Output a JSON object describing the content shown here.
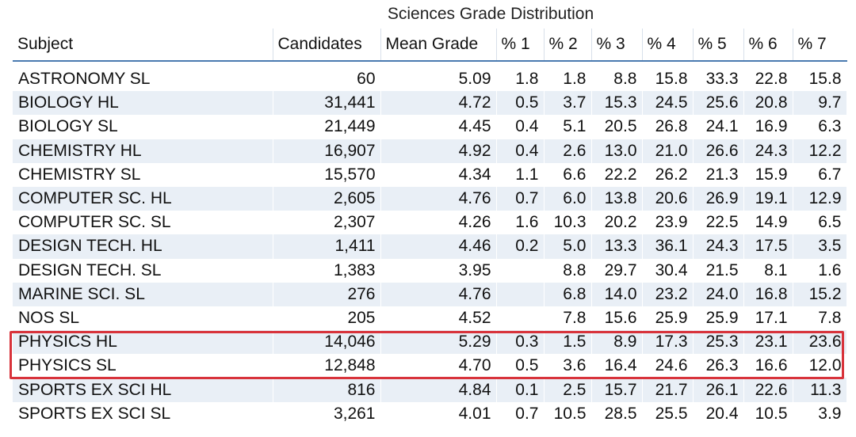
{
  "title": "Sciences Grade Distribution",
  "highlight_color": "#d8333b",
  "header_rule_color": "#4a7ab0",
  "stripe_color": "#e9eff6",
  "columns": [
    "Subject",
    "Candidates",
    "Mean Grade",
    "% 1",
    "% 2",
    "% 3",
    "% 4",
    "% 5",
    "% 6",
    "% 7"
  ],
  "rows": [
    [
      "ASTRONOMY SL",
      "60",
      "5.09",
      "1.8",
      "1.8",
      "8.8",
      "15.8",
      "33.3",
      "22.8",
      "15.8"
    ],
    [
      "BIOLOGY HL",
      "31,441",
      "4.72",
      "0.5",
      "3.7",
      "15.3",
      "24.5",
      "25.6",
      "20.8",
      "9.7"
    ],
    [
      "BIOLOGY SL",
      "21,449",
      "4.45",
      "0.4",
      "5.1",
      "20.5",
      "26.8",
      "24.1",
      "16.9",
      "6.3"
    ],
    [
      "CHEMISTRY HL",
      "16,907",
      "4.92",
      "0.4",
      "2.6",
      "13.0",
      "21.0",
      "26.6",
      "24.3",
      "12.2"
    ],
    [
      "CHEMISTRY SL",
      "15,570",
      "4.34",
      "1.1",
      "6.6",
      "22.2",
      "26.2",
      "21.3",
      "15.9",
      "6.7"
    ],
    [
      "COMPUTER SC. HL",
      "2,605",
      "4.76",
      "0.7",
      "6.0",
      "13.8",
      "20.6",
      "26.9",
      "19.1",
      "12.9"
    ],
    [
      "COMPUTER SC. SL",
      "2,307",
      "4.26",
      "1.6",
      "10.3",
      "20.2",
      "23.9",
      "22.5",
      "14.9",
      "6.5"
    ],
    [
      "DESIGN TECH. HL",
      "1,411",
      "4.46",
      "0.2",
      "5.0",
      "13.3",
      "36.1",
      "24.3",
      "17.5",
      "3.5"
    ],
    [
      "DESIGN TECH. SL",
      "1,383",
      "3.95",
      "",
      "8.8",
      "29.7",
      "30.4",
      "21.5",
      "8.1",
      "1.6"
    ],
    [
      "MARINE SCI. SL",
      "276",
      "4.76",
      "",
      "6.8",
      "14.0",
      "23.2",
      "24.0",
      "16.8",
      "15.2"
    ],
    [
      "NOS SL",
      "205",
      "4.52",
      "",
      "7.8",
      "15.6",
      "25.9",
      "25.9",
      "17.1",
      "7.8"
    ],
    [
      "PHYSICS HL",
      "14,046",
      "5.29",
      "0.3",
      "1.5",
      "8.9",
      "17.3",
      "25.3",
      "23.1",
      "23.6"
    ],
    [
      "PHYSICS SL",
      "12,848",
      "4.70",
      "0.5",
      "3.6",
      "16.4",
      "24.6",
      "26.3",
      "16.6",
      "12.0"
    ],
    [
      "SPORTS EX SCI HL",
      "816",
      "4.84",
      "0.1",
      "2.5",
      "15.7",
      "21.7",
      "26.1",
      "22.6",
      "11.3"
    ],
    [
      "SPORTS EX SCI SL",
      "3,261",
      "4.01",
      "0.7",
      "10.5",
      "28.5",
      "25.5",
      "20.4",
      "10.5",
      "3.9"
    ]
  ],
  "highlighted_rows": [
    "PHYSICS HL",
    "PHYSICS SL"
  ]
}
